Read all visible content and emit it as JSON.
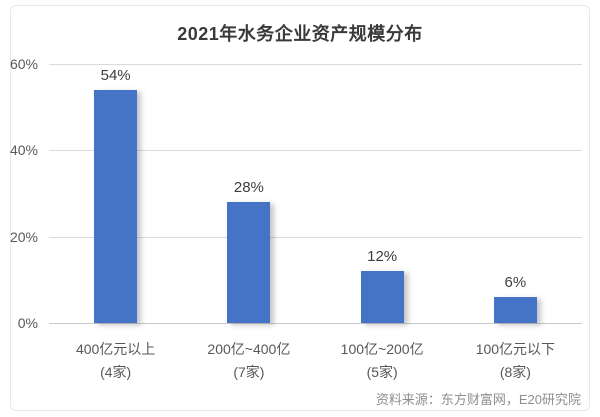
{
  "chart_data": {
    "type": "bar",
    "title": "2021年水务企业资产规模分布",
    "categories": [
      "400亿元以上",
      "200亿~400亿",
      "100亿~200亿",
      "100亿元以下"
    ],
    "category_sublabels": [
      "(4家)",
      "(7家)",
      "(5家)",
      "(8家)"
    ],
    "values": [
      54,
      28,
      12,
      6
    ],
    "value_labels": [
      "54%",
      "28%",
      "12%",
      "6%"
    ],
    "ylim": [
      0,
      60
    ],
    "ytick_interval": 20,
    "ytick_labels": [
      "0%",
      "20%",
      "40%",
      "60%"
    ],
    "grid": true,
    "legend": "none",
    "xlabel": "",
    "ylabel": ""
  },
  "footer": {
    "source": "资料来源：东方财富网，E20研究院"
  },
  "colors": {
    "bar": "#4573c6",
    "gridline": "#dadada",
    "axis_line": "#c9c9c9",
    "title_text": "#3a3a3a",
    "axis_text": "#5a5a5a",
    "value_text": "#3d3d3d",
    "source_text": "#8e8e8e",
    "border": "#e9e9e9",
    "background": "#ffffff"
  }
}
